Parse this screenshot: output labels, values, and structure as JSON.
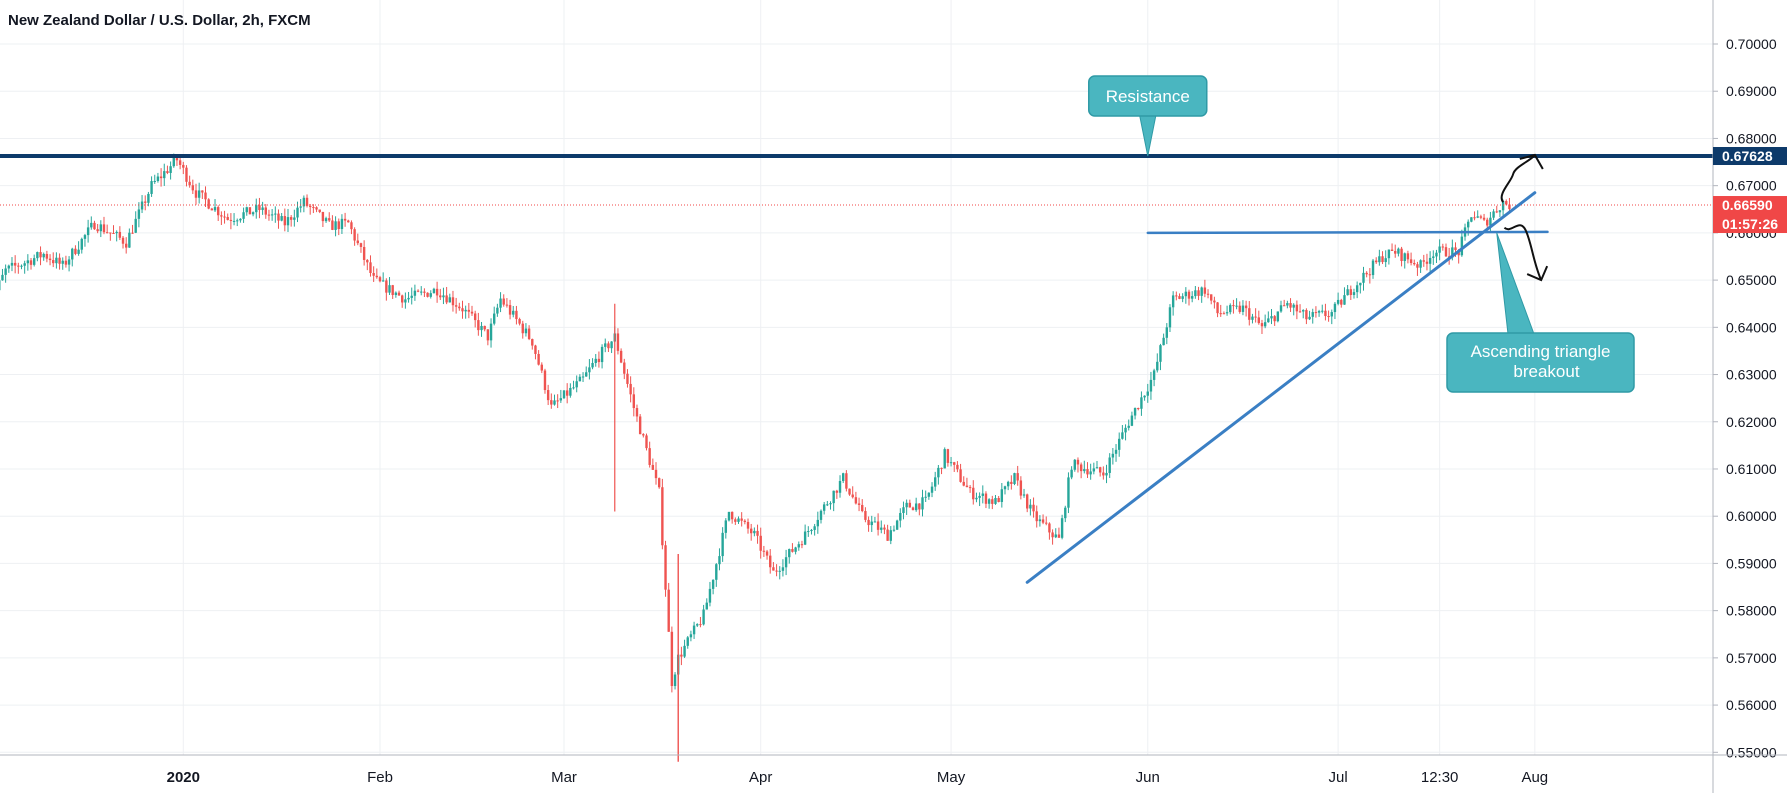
{
  "chart_data": {
    "type": "candlestick",
    "title": "New Zealand Dollar / U.S. Dollar, 2h, FXCM",
    "ylim": [
      0.5485,
      0.7045
    ],
    "y_ticks": [
      "0.70000",
      "0.69000",
      "0.68000",
      "0.67000",
      "0.66000",
      "0.65000",
      "0.64000",
      "0.63000",
      "0.62000",
      "0.61000",
      "0.60000",
      "0.59000",
      "0.58000",
      "0.57000",
      "0.56000",
      "0.55000"
    ],
    "y_tick_values": [
      0.7,
      0.69,
      0.68,
      0.67,
      0.66,
      0.65,
      0.64,
      0.63,
      0.62,
      0.61,
      0.6,
      0.59,
      0.58,
      0.57,
      0.56,
      0.55
    ],
    "x_labels": [
      {
        "date": "2020-01-01",
        "label": "2020",
        "bold": true
      },
      {
        "date": "2020-02-01",
        "label": "Feb"
      },
      {
        "date": "2020-03-01",
        "label": "Mar"
      },
      {
        "date": "2020-04-01",
        "label": "Apr"
      },
      {
        "date": "2020-05-01",
        "label": "May"
      },
      {
        "date": "2020-06-01",
        "label": "Jun"
      },
      {
        "date": "2020-07-01",
        "label": "Jul"
      },
      {
        "date": "2020-07-17",
        "label": "12:30"
      },
      {
        "date": "2020-08-01",
        "label": "Aug"
      }
    ],
    "price_path": [
      [
        "2019-12-01",
        0.6435
      ],
      [
        "2019-12-04",
        0.652
      ],
      [
        "2019-12-10",
        0.6555
      ],
      [
        "2019-12-13",
        0.653
      ],
      [
        "2019-12-18",
        0.662
      ],
      [
        "2019-12-23",
        0.658
      ],
      [
        "2019-12-27",
        0.67
      ],
      [
        "2019-12-31",
        0.6755
      ],
      [
        "2020-01-03",
        0.6685
      ],
      [
        "2020-01-08",
        0.663
      ],
      [
        "2020-01-13",
        0.665
      ],
      [
        "2020-01-17",
        0.662
      ],
      [
        "2020-01-20",
        0.6665
      ],
      [
        "2020-01-24",
        0.6615
      ],
      [
        "2020-01-27",
        0.662
      ],
      [
        "2020-01-31",
        0.65
      ],
      [
        "2020-02-05",
        0.646
      ],
      [
        "2020-02-10",
        0.648
      ],
      [
        "2020-02-14",
        0.644
      ],
      [
        "2020-02-18",
        0.638
      ],
      [
        "2020-02-20",
        0.646
      ],
      [
        "2020-02-25",
        0.637
      ],
      [
        "2020-02-28",
        0.623
      ],
      [
        "2020-03-04",
        0.629
      ],
      [
        "2020-03-06",
        0.633
      ],
      [
        "2020-03-09",
        0.638
      ],
      [
        "2020-03-12",
        0.623
      ],
      [
        "2020-03-16",
        0.605
      ],
      [
        "2020-03-18",
        0.565
      ],
      [
        "2020-03-19",
        0.57
      ],
      [
        "2020-03-23",
        0.579
      ],
      [
        "2020-03-27",
        0.601
      ],
      [
        "2020-03-31",
        0.596
      ],
      [
        "2020-04-03",
        0.588
      ],
      [
        "2020-04-08",
        0.596
      ],
      [
        "2020-04-14",
        0.608
      ],
      [
        "2020-04-17",
        0.6
      ],
      [
        "2020-04-21",
        0.596
      ],
      [
        "2020-04-24",
        0.602
      ],
      [
        "2020-04-27",
        0.603
      ],
      [
        "2020-04-30",
        0.613
      ],
      [
        "2020-05-04",
        0.605
      ],
      [
        "2020-05-08",
        0.603
      ],
      [
        "2020-05-11",
        0.608
      ],
      [
        "2020-05-14",
        0.6
      ],
      [
        "2020-05-18",
        0.595
      ],
      [
        "2020-05-20",
        0.611
      ],
      [
        "2020-05-25",
        0.609
      ],
      [
        "2020-05-29",
        0.62
      ],
      [
        "2020-06-02",
        0.63
      ],
      [
        "2020-06-05",
        0.646
      ],
      [
        "2020-06-10",
        0.648
      ],
      [
        "2020-06-12",
        0.643
      ],
      [
        "2020-06-16",
        0.644
      ],
      [
        "2020-06-19",
        0.64
      ],
      [
        "2020-06-23",
        0.645
      ],
      [
        "2020-06-26",
        0.642
      ],
      [
        "2020-06-30",
        0.643
      ],
      [
        "2020-07-03",
        0.648
      ],
      [
        "2020-07-08",
        0.655
      ],
      [
        "2020-07-10",
        0.656
      ],
      [
        "2020-07-14",
        0.653
      ],
      [
        "2020-07-16",
        0.656
      ],
      [
        "2020-07-20",
        0.656
      ],
      [
        "2020-07-22",
        0.664
      ],
      [
        "2020-07-24",
        0.662
      ],
      [
        "2020-07-27",
        0.6665
      ],
      [
        "2020-07-28",
        0.6659
      ]
    ],
    "resistance": {
      "price": 0.67628,
      "label": "0.67628",
      "color": "#0d3a6a"
    },
    "current_price": {
      "price": 0.6659,
      "label": "0.66590",
      "countdown": "01:57:26",
      "color": "#f04747"
    },
    "drawings": {
      "horizontal_line": {
        "from": [
          "2020-06-01",
          0.66
        ],
        "to": [
          "2020-08-03",
          0.6602
        ],
        "color": "#3a7fc4"
      },
      "trendline": {
        "from": [
          "2020-05-13",
          0.586
        ],
        "to": [
          "2020-08-01",
          0.6685
        ],
        "color": "#3a7fc4"
      },
      "arrow_up": {
        "from": [
          "2020-07-27",
          0.6665
        ],
        "to": [
          "2020-08-01",
          0.6765
        ]
      },
      "arrow_down": {
        "from": [
          "2020-07-28",
          0.6615
        ],
        "to": [
          "2020-08-02",
          0.65
        ]
      }
    },
    "annotations": [
      {
        "text": "Resistance",
        "anchor": [
          "2020-06-01",
          0.67628
        ],
        "color": "#4ab6c0"
      },
      {
        "text_lines": [
          "Ascending triangle",
          "breakout"
        ],
        "anchor": [
          "2020-07-26",
          0.66
        ],
        "color": "#4ab6c0"
      }
    ],
    "candle_colors": {
      "up": "#26a69a",
      "down": "#ef5350"
    }
  }
}
